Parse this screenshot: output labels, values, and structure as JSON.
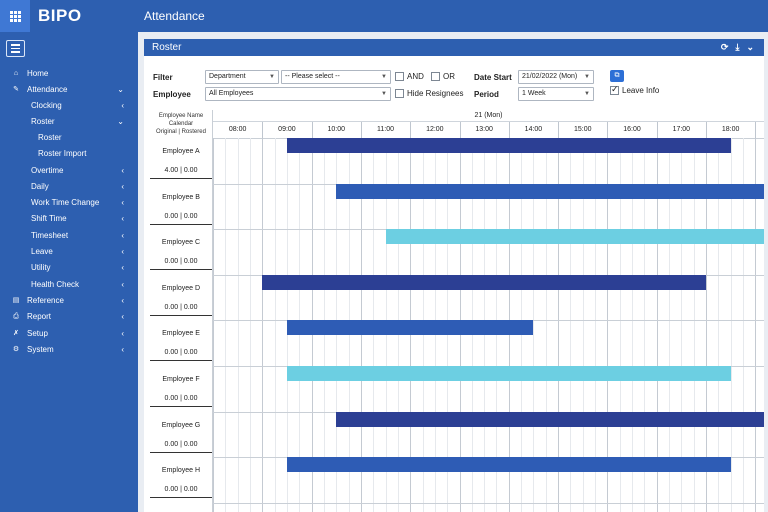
{
  "app": {
    "brand": "BIPO",
    "page_title": "Attendance"
  },
  "sidebar": {
    "items": [
      {
        "label": "Home",
        "icon": "home-icon",
        "glyph": "⌂",
        "indent": 0,
        "chevron": ""
      },
      {
        "label": "Attendance",
        "icon": "edit-icon",
        "glyph": "✎",
        "indent": 0,
        "chevron": "⌄"
      },
      {
        "label": "Clocking",
        "icon": "",
        "glyph": "",
        "indent": 1,
        "chevron": "‹"
      },
      {
        "label": "Roster",
        "icon": "",
        "glyph": "",
        "indent": 1,
        "chevron": "⌄"
      },
      {
        "label": "Roster",
        "icon": "",
        "glyph": "",
        "indent": 2,
        "chevron": ""
      },
      {
        "label": "Roster Import",
        "icon": "",
        "glyph": "",
        "indent": 2,
        "chevron": ""
      },
      {
        "label": "Overtime",
        "icon": "",
        "glyph": "",
        "indent": 1,
        "chevron": "‹"
      },
      {
        "label": "Daily",
        "icon": "",
        "glyph": "",
        "indent": 1,
        "chevron": "‹"
      },
      {
        "label": "Work Time Change",
        "icon": "",
        "glyph": "",
        "indent": 1,
        "chevron": "‹"
      },
      {
        "label": "Shift Time",
        "icon": "",
        "glyph": "",
        "indent": 1,
        "chevron": "‹"
      },
      {
        "label": "Timesheet",
        "icon": "",
        "glyph": "",
        "indent": 1,
        "chevron": "‹"
      },
      {
        "label": "Leave",
        "icon": "",
        "glyph": "",
        "indent": 1,
        "chevron": "‹"
      },
      {
        "label": "Utility",
        "icon": "",
        "glyph": "",
        "indent": 1,
        "chevron": "‹"
      },
      {
        "label": "Health Check",
        "icon": "",
        "glyph": "",
        "indent": 1,
        "chevron": "‹"
      },
      {
        "label": "Reference",
        "icon": "book-icon",
        "glyph": "▤",
        "indent": 0,
        "chevron": "‹"
      },
      {
        "label": "Report",
        "icon": "print-icon",
        "glyph": "⎙",
        "indent": 0,
        "chevron": "‹"
      },
      {
        "label": "Setup",
        "icon": "wrench-icon",
        "glyph": "✗",
        "indent": 0,
        "chevron": "‹"
      },
      {
        "label": "System",
        "icon": "cogs-icon",
        "glyph": "⚙",
        "indent": 0,
        "chevron": "‹"
      }
    ]
  },
  "panel": {
    "title": "Roster"
  },
  "filter": {
    "filter_label": "Filter",
    "department_value": "Department",
    "select_value": "-- Please select --",
    "and_label": "AND",
    "or_label": "OR",
    "date_start_label": "Date Start",
    "date_start_value": "21/02/2022 (Mon)",
    "employee_label": "Employee",
    "employee_value": "All Employees",
    "hide_resignees_label": "Hide Resignees",
    "period_label": "Period",
    "period_value": "1 Week",
    "leave_info_label": "Leave Info",
    "leave_info_checked": true
  },
  "roster": {
    "header_line1": "Employee Name",
    "header_line2": "Calendar",
    "header_line3": "Original | Rostered",
    "date_label": "21 (Mon)",
    "hours": [
      "08:00",
      "09:00",
      "10:00",
      "11:00",
      "12:00",
      "13:00",
      "14:00",
      "15:00",
      "16:00",
      "17:00",
      "18:00"
    ],
    "colors": {
      "navy": "#2c3f94",
      "blue": "#2e5cb5",
      "cyan": "#6ccfe2"
    },
    "employees": [
      {
        "name": "Employee A",
        "hours": "4.00 | 0.00",
        "start": 9.0,
        "end": 18.0,
        "color": "navy"
      },
      {
        "name": "Employee B",
        "hours": "0.00 | 0.00",
        "start": 10.0,
        "end": 19.25,
        "color": "blue"
      },
      {
        "name": "Employee C",
        "hours": "0.00 | 0.00",
        "start": 11.0,
        "end": 19.25,
        "color": "cyan"
      },
      {
        "name": "Employee D",
        "hours": "0.00 | 0.00",
        "start": 8.5,
        "end": 17.5,
        "color": "navy"
      },
      {
        "name": "Employee E",
        "hours": "0.00 | 0.00",
        "start": 9.0,
        "end": 14.0,
        "color": "blue"
      },
      {
        "name": "Employee F",
        "hours": "0.00 | 0.00",
        "start": 9.0,
        "end": 18.0,
        "color": "cyan"
      },
      {
        "name": "Employee G",
        "hours": "0.00 | 0.00",
        "start": 10.0,
        "end": 19.25,
        "color": "navy"
      },
      {
        "name": "Employee H",
        "hours": "0.00 | 0.00",
        "start": 9.0,
        "end": 18.0,
        "color": "blue"
      }
    ]
  }
}
